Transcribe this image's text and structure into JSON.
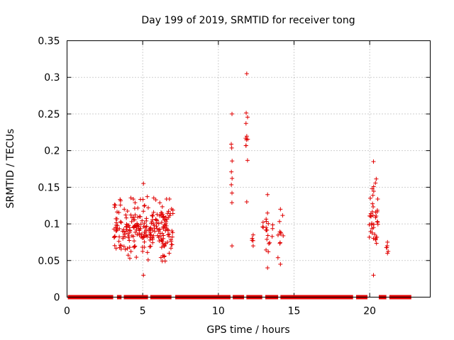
{
  "chart_data": {
    "type": "scatter",
    "title": "Day 199 of 2019, SRMTID for receiver tong",
    "xlabel": "GPS time / hours",
    "ylabel": "SRMTID / TECUs",
    "xlim": [
      0,
      24
    ],
    "ylim": [
      0,
      0.35
    ],
    "xticks": [
      0,
      5,
      10,
      15,
      20
    ],
    "yticks": [
      0,
      0.05,
      0.1,
      0.15,
      0.2,
      0.25,
      0.3,
      0.35
    ],
    "grid": true,
    "marker": "+",
    "series_color": "#e00000",
    "zero_segments": [
      [
        0.05,
        3.05
      ],
      [
        3.3,
        3.6
      ],
      [
        3.75,
        5.35
      ],
      [
        5.5,
        6.9
      ],
      [
        7.15,
        10.8
      ],
      [
        10.95,
        11.7
      ],
      [
        11.85,
        12.9
      ],
      [
        13.1,
        13.95
      ],
      [
        14.1,
        18.9
      ],
      [
        19.1,
        19.85
      ],
      [
        20.6,
        21.1
      ],
      [
        21.3,
        22.75
      ]
    ],
    "clusters": [
      {
        "x_range": [
          3.1,
          7.0
        ],
        "y_range": [
          0.03,
          0.155
        ],
        "count": 260,
        "note": "dense cluster"
      },
      {
        "x_range": [
          10.85,
          10.95
        ],
        "y_range": [
          0.07,
          0.25
        ],
        "count": 8
      },
      {
        "x_range": [
          11.8,
          11.95
        ],
        "y_range": [
          0.13,
          0.305
        ],
        "count": 10
      },
      {
        "x_range": [
          12.2,
          12.4
        ],
        "y_range": [
          0.07,
          0.085
        ],
        "count": 3
      },
      {
        "x_range": [
          12.9,
          13.6
        ],
        "y_range": [
          0.04,
          0.14
        ],
        "count": 20
      },
      {
        "x_range": [
          13.9,
          14.3
        ],
        "y_range": [
          0.045,
          0.12
        ],
        "count": 10
      },
      {
        "x_range": [
          19.95,
          20.55
        ],
        "y_range": [
          0.03,
          0.185
        ],
        "count": 40
      },
      {
        "x_range": [
          21.1,
          21.25
        ],
        "y_range": [
          0.06,
          0.075
        ],
        "count": 4
      }
    ]
  }
}
